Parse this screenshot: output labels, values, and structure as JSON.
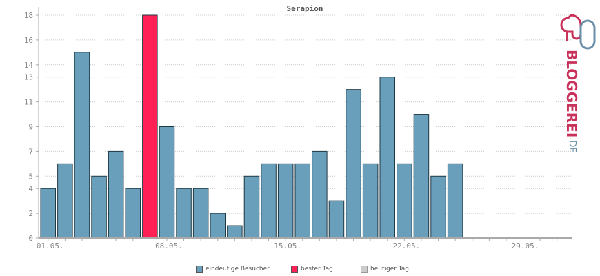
{
  "chart_data": {
    "type": "bar",
    "title": "Serapion",
    "x_tick_labels": [
      "01.05.",
      "08.05.",
      "15.05.",
      "22.05.",
      "29.05."
    ],
    "y_tick_labels": [
      0,
      2,
      4,
      5,
      7,
      9,
      11,
      13,
      14,
      16,
      18
    ],
    "ylim": [
      0,
      18
    ],
    "grid": true,
    "legend_position": "bottom",
    "days": 31,
    "values": [
      4,
      6,
      15,
      5,
      7,
      4,
      18,
      9,
      4,
      4,
      2,
      1,
      5,
      6,
      6,
      6,
      7,
      3,
      12,
      6,
      13,
      6,
      10,
      5,
      6,
      0,
      0,
      0,
      0,
      0,
      0
    ],
    "best_day_index": 6,
    "colors": {
      "visitors": "#6a9fbb",
      "best_day": "#ff2155",
      "today": "#cccccc",
      "bar_border": "#1e3a44",
      "grid": "#cccccc",
      "axis": "#aaaaaa"
    }
  },
  "legend": [
    {
      "label": "eindeutige Besucher",
      "color": "#6a9fbb"
    },
    {
      "label": "bester Tag",
      "color": "#ff2155"
    },
    {
      "label": "heutiger Tag",
      "color": "#cccccc"
    }
  ],
  "logo": {
    "main": "BLOGGEREI",
    "tld": ".DE",
    "icon": "bloggerei-logo-icon"
  }
}
